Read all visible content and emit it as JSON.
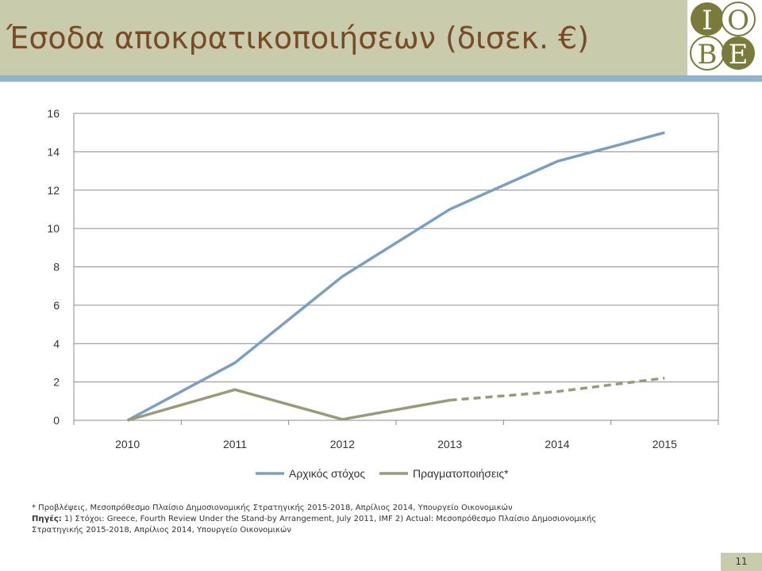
{
  "slide": {
    "title": "Έσοδα αποκρατικοποιήσεων (δισεκ. €)",
    "page_number": "11",
    "logo": {
      "letters": [
        "I",
        "O",
        "B",
        "E"
      ],
      "circle_color": "#7a7a3a"
    },
    "colors": {
      "header_bg": "#c9cbad",
      "header_rule": "#8fb2cf",
      "title": "#7a4a24"
    }
  },
  "notes": {
    "line1": "* Προβλέψεις, Μεσοπρόθεσμο Πλαίσιο Δημοσιονομικής Στρατηγικής 2015-2018, Απρίλιος 2014, Υπουργείο Οικονομικών",
    "sources_label": "Πηγές:",
    "sources_text": " 1) Στόχοι: Greece, Fourth Review Under the Stand-by Arrangement, July 2011, IMF 2) Actual: Μεσοπρόθεσμο Πλαίσιο Δημοσιονομικής",
    "line3": "Στρατηγικής 2015-2018, Απρίλιος 2014, Υπουργείο Οικονομικών"
  },
  "chart_data": {
    "type": "line",
    "title": "",
    "xlabel": "",
    "ylabel": "",
    "categories": [
      "2010",
      "2011",
      "2012",
      "2013",
      "2014",
      "2015"
    ],
    "ylim": [
      0,
      16
    ],
    "yticks": [
      "0",
      "2",
      "4",
      "6",
      "8",
      "10",
      "12",
      "14",
      "16"
    ],
    "grid": true,
    "legend_position": "bottom",
    "series": [
      {
        "name": "Αρχικός στόχος",
        "color": "#7a9fc2",
        "values": [
          0,
          3,
          7.5,
          11,
          13.5,
          15
        ]
      },
      {
        "name": "Πραγματοποιήσεις*",
        "color": "#9a9a78",
        "values": [
          0,
          1.6,
          0.05,
          1.05,
          1.5,
          2.2
        ],
        "dashed_from_index": 3
      }
    ]
  }
}
